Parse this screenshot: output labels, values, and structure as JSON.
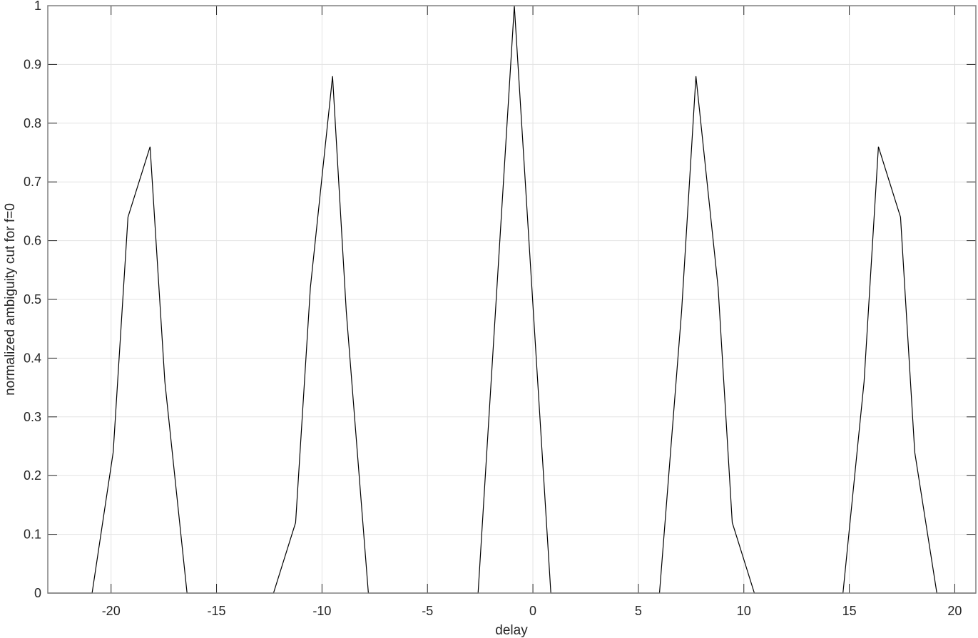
{
  "chart_data": {
    "type": "line",
    "title": "",
    "xlabel": "delay",
    "ylabel": "normalized ambiguity cut for f=0",
    "xlim": [
      -23,
      21
    ],
    "ylim": [
      0,
      1
    ],
    "grid": true,
    "xticks": [
      -20,
      -15,
      -10,
      -5,
      0,
      5,
      10,
      15,
      20
    ],
    "yticks": [
      0,
      0.1,
      0.2,
      0.3,
      0.4,
      0.5,
      0.6,
      0.7,
      0.8,
      0.9,
      1
    ],
    "series": [
      {
        "color": "#000000",
        "x": [
          -23,
          -20.9,
          -19.9,
          -19.2,
          -18.15,
          -17.45,
          -16.4,
          -12.3,
          -11.25,
          -10.55,
          -9.5,
          -8.85,
          -7.8,
          -2.6,
          -0.88,
          0.85,
          6.0,
          7.05,
          7.73,
          8.78,
          9.45,
          10.5,
          14.7,
          15.7,
          16.38,
          17.43,
          18.1,
          19.15,
          21
        ],
        "y": [
          0,
          0,
          0.24,
          0.64,
          0.76,
          0.36,
          0,
          0,
          0.12,
          0.52,
          0.88,
          0.48,
          0,
          0,
          1,
          0,
          0,
          0.48,
          0.88,
          0.52,
          0.12,
          0,
          0,
          0.36,
          0.76,
          0.64,
          0.24,
          0,
          0
        ]
      }
    ]
  }
}
